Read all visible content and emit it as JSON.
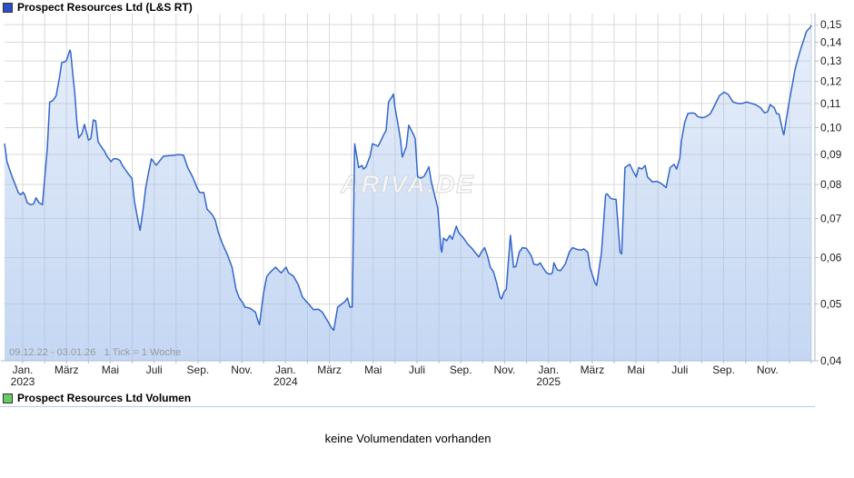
{
  "header": {
    "title": "Prospect Resources Ltd (L&S RT)",
    "legend_color": "#2b50c8"
  },
  "chart": {
    "range_note": "09.12.22 - 03.01.26   1 Tick = 1 Woche",
    "watermark": "ARIVA.DE"
  },
  "volume": {
    "title": "Prospect Resources Ltd Volumen",
    "legend_color": "#66cc66",
    "empty_text": "keine Volumendaten vorhanden"
  },
  "chart_data": {
    "type": "area",
    "title": "Prospect Resources Ltd (L&S RT)",
    "x_domain": [
      "2022-12-09",
      "2026-01-03"
    ],
    "tick_interval": "1 Woche",
    "y_scale": "log",
    "ylim": [
      0.04,
      0.1566
    ],
    "grid": true,
    "colors": {
      "line": "#3366cc",
      "fill": "#a0beeb",
      "grid": "#d9d9d9",
      "axis": "#aabdd6",
      "price_legend": "#2b50c8",
      "volume_legend": "#66cc66"
    },
    "y_ticks": [
      {
        "label": "0,15",
        "value": 0.15
      },
      {
        "label": "0,14",
        "value": 0.14
      },
      {
        "label": "0,13",
        "value": 0.13
      },
      {
        "label": "0,12",
        "value": 0.12
      },
      {
        "label": "0,11",
        "value": 0.11
      },
      {
        "label": "0,10",
        "value": 0.1
      },
      {
        "label": "0,09",
        "value": 0.09
      },
      {
        "label": "0,08",
        "value": 0.08
      },
      {
        "label": "0,07",
        "value": 0.07
      },
      {
        "label": "0,06",
        "value": 0.06
      },
      {
        "label": "0,05",
        "value": 0.05
      },
      {
        "label": "0,04",
        "value": 0.04
      }
    ],
    "x_months_total": 37,
    "x_labels": [
      {
        "i": 0,
        "label": "Jan.",
        "year": "2023"
      },
      {
        "i": 2,
        "label": "März"
      },
      {
        "i": 4,
        "label": "Mai"
      },
      {
        "i": 6,
        "label": "Juli"
      },
      {
        "i": 8,
        "label": "Sep."
      },
      {
        "i": 10,
        "label": "Nov."
      },
      {
        "i": 12,
        "label": "Jan.",
        "year": "2024"
      },
      {
        "i": 14,
        "label": "März"
      },
      {
        "i": 16,
        "label": "Mai"
      },
      {
        "i": 18,
        "label": "Juli"
      },
      {
        "i": 20,
        "label": "Sep."
      },
      {
        "i": 22,
        "label": "Nov."
      },
      {
        "i": 24,
        "label": "Jan.",
        "year": "2025"
      },
      {
        "i": 26,
        "label": "März"
      },
      {
        "i": 28,
        "label": "Mai"
      },
      {
        "i": 30,
        "label": "Juli"
      },
      {
        "i": 32,
        "label": "Sep."
      },
      {
        "i": 34,
        "label": "Nov."
      }
    ],
    "points": [
      [
        0.0,
        0.094
      ],
      [
        0.003,
        0.0875
      ],
      [
        0.008,
        0.0835
      ],
      [
        0.014,
        0.0795
      ],
      [
        0.017,
        0.0775
      ],
      [
        0.02,
        0.0768
      ],
      [
        0.023,
        0.0776
      ],
      [
        0.025,
        0.0768
      ],
      [
        0.028,
        0.0745
      ],
      [
        0.032,
        0.0739
      ],
      [
        0.036,
        0.0741
      ],
      [
        0.039,
        0.0759
      ],
      [
        0.043,
        0.0744
      ],
      [
        0.047,
        0.0739
      ],
      [
        0.048,
        0.0768
      ],
      [
        0.053,
        0.0924
      ],
      [
        0.056,
        0.1106
      ],
      [
        0.06,
        0.1113
      ],
      [
        0.064,
        0.1134
      ],
      [
        0.068,
        0.1216
      ],
      [
        0.071,
        0.1292
      ],
      [
        0.075,
        0.1296
      ],
      [
        0.077,
        0.1305
      ],
      [
        0.081,
        0.1357
      ],
      [
        0.082,
        0.1346
      ],
      [
        0.084,
        0.1259
      ],
      [
        0.087,
        0.1146
      ],
      [
        0.09,
        0.101
      ],
      [
        0.092,
        0.0961
      ],
      [
        0.096,
        0.0978
      ],
      [
        0.099,
        0.1013
      ],
      [
        0.104,
        0.0952
      ],
      [
        0.107,
        0.0958
      ],
      [
        0.11,
        0.1031
      ],
      [
        0.113,
        0.1027
      ],
      [
        0.116,
        0.0946
      ],
      [
        0.12,
        0.0928
      ],
      [
        0.124,
        0.0911
      ],
      [
        0.127,
        0.0894
      ],
      [
        0.132,
        0.0875
      ],
      [
        0.135,
        0.0885
      ],
      [
        0.139,
        0.0885
      ],
      [
        0.143,
        0.0879
      ],
      [
        0.146,
        0.0863
      ],
      [
        0.15,
        0.0847
      ],
      [
        0.154,
        0.0832
      ],
      [
        0.158,
        0.0819
      ],
      [
        0.161,
        0.0748
      ],
      [
        0.166,
        0.0688
      ],
      [
        0.168,
        0.0668
      ],
      [
        0.172,
        0.0729
      ],
      [
        0.175,
        0.079
      ],
      [
        0.178,
        0.0832
      ],
      [
        0.182,
        0.0885
      ],
      [
        0.188,
        0.0863
      ],
      [
        0.197,
        0.0894
      ],
      [
        0.208,
        0.0897
      ],
      [
        0.217,
        0.09
      ],
      [
        0.222,
        0.0897
      ],
      [
        0.227,
        0.0855
      ],
      [
        0.233,
        0.0825
      ],
      [
        0.239,
        0.0788
      ],
      [
        0.242,
        0.0775
      ],
      [
        0.247,
        0.0775
      ],
      [
        0.251,
        0.0726
      ],
      [
        0.257,
        0.0712
      ],
      [
        0.261,
        0.0696
      ],
      [
        0.265,
        0.0663
      ],
      [
        0.27,
        0.0634
      ],
      [
        0.276,
        0.0608
      ],
      [
        0.282,
        0.0578
      ],
      [
        0.287,
        0.0529
      ],
      [
        0.291,
        0.0512
      ],
      [
        0.295,
        0.0503
      ],
      [
        0.298,
        0.0494
      ],
      [
        0.304,
        0.0492
      ],
      [
        0.307,
        0.0489
      ],
      [
        0.311,
        0.0484
      ],
      [
        0.314,
        0.0469
      ],
      [
        0.316,
        0.0461
      ],
      [
        0.321,
        0.0521
      ],
      [
        0.325,
        0.0557
      ],
      [
        0.33,
        0.0568
      ],
      [
        0.336,
        0.0578
      ],
      [
        0.34,
        0.057
      ],
      [
        0.343,
        0.0565
      ],
      [
        0.349,
        0.0578
      ],
      [
        0.352,
        0.0565
      ],
      [
        0.358,
        0.0558
      ],
      [
        0.364,
        0.054
      ],
      [
        0.369,
        0.0515
      ],
      [
        0.374,
        0.0505
      ],
      [
        0.377,
        0.05
      ],
      [
        0.383,
        0.0489
      ],
      [
        0.389,
        0.049
      ],
      [
        0.394,
        0.0484
      ],
      [
        0.4,
        0.0469
      ],
      [
        0.405,
        0.0456
      ],
      [
        0.408,
        0.0451
      ],
      [
        0.413,
        0.0494
      ],
      [
        0.418,
        0.05
      ],
      [
        0.422,
        0.0505
      ],
      [
        0.425,
        0.0512
      ],
      [
        0.428,
        0.0494
      ],
      [
        0.431,
        0.0494
      ],
      [
        0.434,
        0.0939
      ],
      [
        0.439,
        0.0855
      ],
      [
        0.443,
        0.0862
      ],
      [
        0.445,
        0.085
      ],
      [
        0.448,
        0.0857
      ],
      [
        0.453,
        0.0894
      ],
      [
        0.456,
        0.0939
      ],
      [
        0.459,
        0.0935
      ],
      [
        0.463,
        0.093
      ],
      [
        0.465,
        0.0941
      ],
      [
        0.47,
        0.0973
      ],
      [
        0.473,
        0.099
      ],
      [
        0.476,
        0.1106
      ],
      [
        0.481,
        0.1134
      ],
      [
        0.482,
        0.1142
      ],
      [
        0.484,
        0.1082
      ],
      [
        0.488,
        0.101
      ],
      [
        0.491,
        0.095
      ],
      [
        0.493,
        0.0891
      ],
      [
        0.498,
        0.0928
      ],
      [
        0.501,
        0.101
      ],
      [
        0.507,
        0.0973
      ],
      [
        0.509,
        0.0958
      ],
      [
        0.512,
        0.0824
      ],
      [
        0.516,
        0.082
      ],
      [
        0.52,
        0.0826
      ],
      [
        0.526,
        0.0857
      ],
      [
        0.529,
        0.0808
      ],
      [
        0.533,
        0.0768
      ],
      [
        0.537,
        0.0729
      ],
      [
        0.541,
        0.0621
      ],
      [
        0.542,
        0.0613
      ],
      [
        0.544,
        0.0648
      ],
      [
        0.548,
        0.0641
      ],
      [
        0.552,
        0.0655
      ],
      [
        0.555,
        0.0645
      ],
      [
        0.56,
        0.0679
      ],
      [
        0.563,
        0.0662
      ],
      [
        0.569,
        0.0648
      ],
      [
        0.574,
        0.0633
      ],
      [
        0.58,
        0.0621
      ],
      [
        0.583,
        0.0613
      ],
      [
        0.588,
        0.0602
      ],
      [
        0.591,
        0.0613
      ],
      [
        0.595,
        0.0624
      ],
      [
        0.599,
        0.0602
      ],
      [
        0.602,
        0.0578
      ],
      [
        0.606,
        0.0568
      ],
      [
        0.61,
        0.0543
      ],
      [
        0.614,
        0.0515
      ],
      [
        0.616,
        0.051
      ],
      [
        0.619,
        0.0524
      ],
      [
        0.622,
        0.053
      ],
      [
        0.627,
        0.0655
      ],
      [
        0.631,
        0.0578
      ],
      [
        0.634,
        0.058
      ],
      [
        0.638,
        0.0613
      ],
      [
        0.642,
        0.0624
      ],
      [
        0.647,
        0.0622
      ],
      [
        0.653,
        0.0604
      ],
      [
        0.656,
        0.0585
      ],
      [
        0.661,
        0.0583
      ],
      [
        0.664,
        0.0588
      ],
      [
        0.668,
        0.0575
      ],
      [
        0.672,
        0.0565
      ],
      [
        0.676,
        0.0562
      ],
      [
        0.679,
        0.0565
      ],
      [
        0.681,
        0.0588
      ],
      [
        0.685,
        0.0572
      ],
      [
        0.689,
        0.057
      ],
      [
        0.695,
        0.0585
      ],
      [
        0.7,
        0.0613
      ],
      [
        0.704,
        0.0624
      ],
      [
        0.709,
        0.062
      ],
      [
        0.715,
        0.0618
      ],
      [
        0.718,
        0.0621
      ],
      [
        0.723,
        0.0613
      ],
      [
        0.726,
        0.0575
      ],
      [
        0.732,
        0.0543
      ],
      [
        0.734,
        0.0538
      ],
      [
        0.74,
        0.0613
      ],
      [
        0.745,
        0.0768
      ],
      [
        0.747,
        0.0771
      ],
      [
        0.751,
        0.0758
      ],
      [
        0.754,
        0.0755
      ],
      [
        0.758,
        0.0755
      ],
      [
        0.763,
        0.0613
      ],
      [
        0.765,
        0.0609
      ],
      [
        0.769,
        0.0855
      ],
      [
        0.775,
        0.0866
      ],
      [
        0.779,
        0.0843
      ],
      [
        0.783,
        0.0824
      ],
      [
        0.786,
        0.0855
      ],
      [
        0.79,
        0.085
      ],
      [
        0.794,
        0.0862
      ],
      [
        0.797,
        0.0824
      ],
      [
        0.803,
        0.0808
      ],
      [
        0.808,
        0.081
      ],
      [
        0.813,
        0.0805
      ],
      [
        0.816,
        0.0799
      ],
      [
        0.82,
        0.079
      ],
      [
        0.825,
        0.0855
      ],
      [
        0.83,
        0.0866
      ],
      [
        0.833,
        0.085
      ],
      [
        0.837,
        0.0887
      ],
      [
        0.839,
        0.095
      ],
      [
        0.843,
        0.102
      ],
      [
        0.847,
        0.1057
      ],
      [
        0.852,
        0.106
      ],
      [
        0.856,
        0.1057
      ],
      [
        0.859,
        0.1045
      ],
      [
        0.865,
        0.104
      ],
      [
        0.87,
        0.1045
      ],
      [
        0.875,
        0.1057
      ],
      [
        0.88,
        0.109
      ],
      [
        0.886,
        0.1134
      ],
      [
        0.892,
        0.115
      ],
      [
        0.897,
        0.114
      ],
      [
        0.903,
        0.1106
      ],
      [
        0.909,
        0.11
      ],
      [
        0.914,
        0.11
      ],
      [
        0.92,
        0.1106
      ],
      [
        0.926,
        0.11
      ],
      [
        0.931,
        0.1095
      ],
      [
        0.937,
        0.1082
      ],
      [
        0.942,
        0.106
      ],
      [
        0.946,
        0.1065
      ],
      [
        0.949,
        0.1095
      ],
      [
        0.954,
        0.1082
      ],
      [
        0.957,
        0.1057
      ],
      [
        0.96,
        0.1055
      ],
      [
        0.965,
        0.0982
      ],
      [
        0.966,
        0.0973
      ],
      [
        0.972,
        0.1095
      ],
      [
        0.976,
        0.1176
      ],
      [
        0.98,
        0.1259
      ],
      [
        0.983,
        0.1306
      ],
      [
        0.987,
        0.1365
      ],
      [
        0.991,
        0.1417
      ],
      [
        0.994,
        0.146
      ],
      [
        0.999,
        0.1485
      ],
      [
        1.0,
        0.1496
      ]
    ]
  }
}
